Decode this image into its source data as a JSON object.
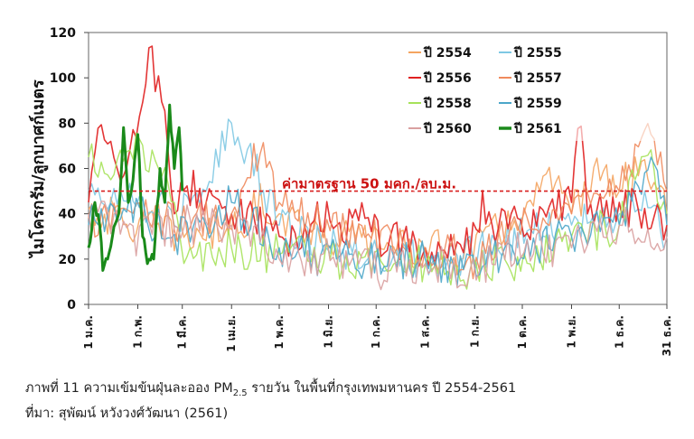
{
  "chart_data": {
    "type": "line",
    "ylabel": "ไมโครกรัม/ลูกบาศก์เมตร",
    "xlabel": "",
    "ylim": [
      0,
      120
    ],
    "yticks": [
      0,
      20,
      40,
      60,
      80,
      100,
      120
    ],
    "x_tick_labels": [
      "1 ม.ค.",
      "1 ก.พ.",
      "1 มี.ค.",
      "1 เม.ย.",
      "1 พ.ค.",
      "1 มิ.ย.",
      "1 ก.ค.",
      "1 ส.ค.",
      "1 ก.ย.",
      "1 ต.ค.",
      "1 พ.ย.",
      "1 ธ.ค.",
      "31 ธ.ค."
    ],
    "x_tick_days": [
      1,
      32,
      60,
      91,
      121,
      152,
      182,
      213,
      244,
      274,
      305,
      335,
      365
    ],
    "grid": false,
    "legend_position": "top-right",
    "reference_line": {
      "value": 50,
      "label": "ค่ามาตรฐาน 50 มคก./ลบ.ม.",
      "color": "#d81e1e"
    },
    "series": [
      {
        "name": "ปี 2554",
        "color": "#f4a460",
        "width": 1.4,
        "points": [
          [
            1,
            42
          ],
          [
            30,
            35
          ],
          [
            60,
            30
          ],
          [
            91,
            33
          ],
          [
            110,
            45
          ],
          [
            121,
            40
          ],
          [
            152,
            30
          ],
          [
            182,
            28
          ],
          [
            213,
            24
          ],
          [
            244,
            25
          ],
          [
            274,
            40
          ],
          [
            290,
            55
          ],
          [
            305,
            40
          ],
          [
            320,
            60
          ],
          [
            335,
            50
          ],
          [
            350,
            65
          ],
          [
            365,
            40
          ]
        ]
      },
      {
        "name": "ปี 2555",
        "color": "#7ec8e3",
        "width": 1.4,
        "points": [
          [
            1,
            50
          ],
          [
            30,
            45
          ],
          [
            60,
            40
          ],
          [
            75,
            50
          ],
          [
            91,
            80
          ],
          [
            100,
            70
          ],
          [
            121,
            35
          ],
          [
            152,
            25
          ],
          [
            182,
            22
          ],
          [
            213,
            20
          ],
          [
            244,
            22
          ],
          [
            274,
            30
          ],
          [
            305,
            35
          ],
          [
            335,
            40
          ],
          [
            350,
            50
          ],
          [
            365,
            30
          ]
        ]
      },
      {
        "name": "ปี 2556",
        "color": "#e02020",
        "width": 1.6,
        "points": [
          [
            1,
            45
          ],
          [
            10,
            85
          ],
          [
            20,
            50
          ],
          [
            32,
            75
          ],
          [
            40,
            112
          ],
          [
            50,
            80
          ],
          [
            55,
            40
          ],
          [
            60,
            55
          ],
          [
            75,
            45
          ],
          [
            91,
            40
          ],
          [
            110,
            35
          ],
          [
            121,
            30
          ],
          [
            135,
            25
          ],
          [
            140,
            38
          ],
          [
            152,
            40
          ],
          [
            160,
            32
          ],
          [
            170,
            42
          ],
          [
            175,
            38
          ],
          [
            182,
            30
          ],
          [
            213,
            25
          ],
          [
            244,
            30
          ],
          [
            250,
            45
          ],
          [
            255,
            35
          ],
          [
            274,
            35
          ],
          [
            290,
            40
          ],
          [
            305,
            45
          ],
          [
            310,
            84
          ],
          [
            315,
            40
          ],
          [
            335,
            45
          ],
          [
            365,
            35
          ]
        ]
      },
      {
        "name": "ปี 2557",
        "color": "#f08a5d",
        "width": 1.4,
        "points": [
          [
            1,
            38
          ],
          [
            30,
            42
          ],
          [
            60,
            35
          ],
          [
            91,
            40
          ],
          [
            110,
            72
          ],
          [
            121,
            45
          ],
          [
            152,
            35
          ],
          [
            182,
            30
          ],
          [
            213,
            25
          ],
          [
            244,
            20
          ],
          [
            274,
            35
          ],
          [
            305,
            40
          ],
          [
            335,
            50
          ],
          [
            355,
            75
          ],
          [
            365,
            50
          ]
        ]
      },
      {
        "name": "ปี 2558",
        "color": "#a6e25a",
        "width": 1.4,
        "points": [
          [
            1,
            65
          ],
          [
            15,
            55
          ],
          [
            30,
            70
          ],
          [
            45,
            60
          ],
          [
            55,
            45
          ],
          [
            60,
            20
          ],
          [
            91,
            25
          ],
          [
            121,
            22
          ],
          [
            152,
            20
          ],
          [
            182,
            15
          ],
          [
            213,
            18
          ],
          [
            244,
            15
          ],
          [
            274,
            20
          ],
          [
            305,
            30
          ],
          [
            335,
            35
          ],
          [
            350,
            70
          ],
          [
            365,
            40
          ]
        ]
      },
      {
        "name": "ปี 2559",
        "color": "#4ba6c9",
        "width": 1.4,
        "points": [
          [
            1,
            35
          ],
          [
            30,
            40
          ],
          [
            60,
            30
          ],
          [
            91,
            45
          ],
          [
            121,
            25
          ],
          [
            152,
            20
          ],
          [
            182,
            18
          ],
          [
            213,
            20
          ],
          [
            244,
            15
          ],
          [
            274,
            25
          ],
          [
            305,
            30
          ],
          [
            335,
            35
          ],
          [
            355,
            65
          ],
          [
            365,
            35
          ]
        ]
      },
      {
        "name": "ปี 2560",
        "color": "#d9a0a0",
        "width": 1.4,
        "points": [
          [
            1,
            40
          ],
          [
            30,
            30
          ],
          [
            60,
            35
          ],
          [
            91,
            35
          ],
          [
            121,
            20
          ],
          [
            152,
            20
          ],
          [
            182,
            15
          ],
          [
            213,
            18
          ],
          [
            244,
            15
          ],
          [
            274,
            25
          ],
          [
            305,
            25
          ],
          [
            335,
            35
          ],
          [
            365,
            30
          ]
        ]
      },
      {
        "name": "ปี 2561",
        "color": "#1a8a1a",
        "width": 3,
        "points": [
          [
            1,
            25
          ],
          [
            5,
            45
          ],
          [
            8,
            35
          ],
          [
            10,
            15
          ],
          [
            13,
            20
          ],
          [
            16,
            30
          ],
          [
            20,
            40
          ],
          [
            23,
            78
          ],
          [
            26,
            45
          ],
          [
            29,
            55
          ],
          [
            32,
            75
          ],
          [
            35,
            30
          ],
          [
            38,
            18
          ],
          [
            42,
            20
          ],
          [
            46,
            60
          ],
          [
            49,
            45
          ],
          [
            52,
            88
          ],
          [
            55,
            60
          ],
          [
            58,
            78
          ],
          [
            60,
            50
          ]
        ]
      }
    ]
  },
  "caption": {
    "line1_prefix": "ภาพที่ 11 ความเข้มข้นฝุ่นละออง PM",
    "line1_sub": "2.5",
    "line1_suffix": " รายวัน ในพื้นที่กรุงเทพมหานคร ปี 2554-2561",
    "line2": "ที่มา: สุพัฒน์ หวังวงศ์วัฒนา (2561)"
  }
}
